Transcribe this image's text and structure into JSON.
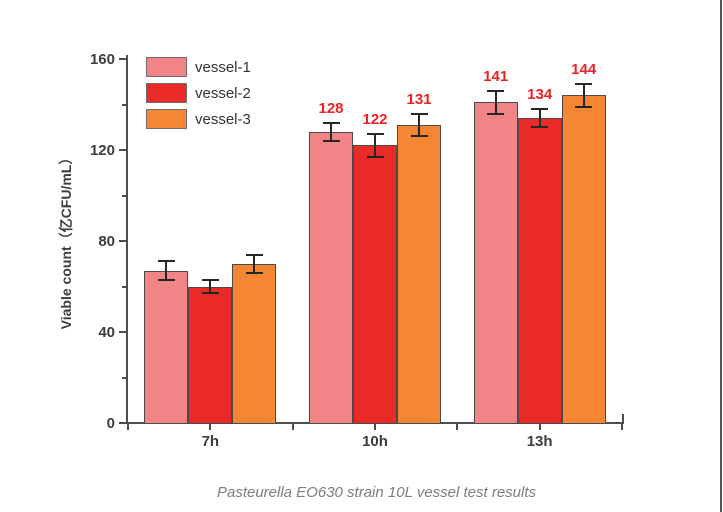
{
  "page": {
    "caption": "Pasteurella EO630 strain 10L vessel test results",
    "background_color": "#ffffff"
  },
  "chart_data": {
    "type": "bar",
    "title": "",
    "xlabel": "",
    "ylabel": "Viable count（亿CFU/mL）",
    "categories": [
      "7h",
      "10h",
      "13h"
    ],
    "series": [
      {
        "name": "vessel-1",
        "color": "#F28387",
        "values": [
          67,
          128,
          141
        ],
        "errors": [
          4,
          4,
          5
        ],
        "labels": [
          null,
          "128",
          "141"
        ]
      },
      {
        "name": "vessel-2",
        "color": "#EA2A27",
        "values": [
          60,
          122,
          134
        ],
        "errors": [
          3,
          5,
          4
        ],
        "labels": [
          null,
          "122",
          "134"
        ]
      },
      {
        "name": "vessel-3",
        "color": "#F58634",
        "values": [
          70,
          131,
          144
        ],
        "errors": [
          4,
          5,
          5
        ],
        "labels": [
          null,
          "131",
          "144"
        ]
      }
    ],
    "ylim": [
      0,
      160
    ],
    "yticks": [
      0,
      40,
      80,
      120,
      160
    ],
    "yticks_minor": [
      20,
      60,
      100,
      140
    ],
    "grid": false,
    "legend_position": "top-left",
    "value_label_color": "#ED2024",
    "axis_color": "#4d4d4d",
    "error_bar_color": "#262626",
    "bar_border_color": "#4a4a4a"
  }
}
